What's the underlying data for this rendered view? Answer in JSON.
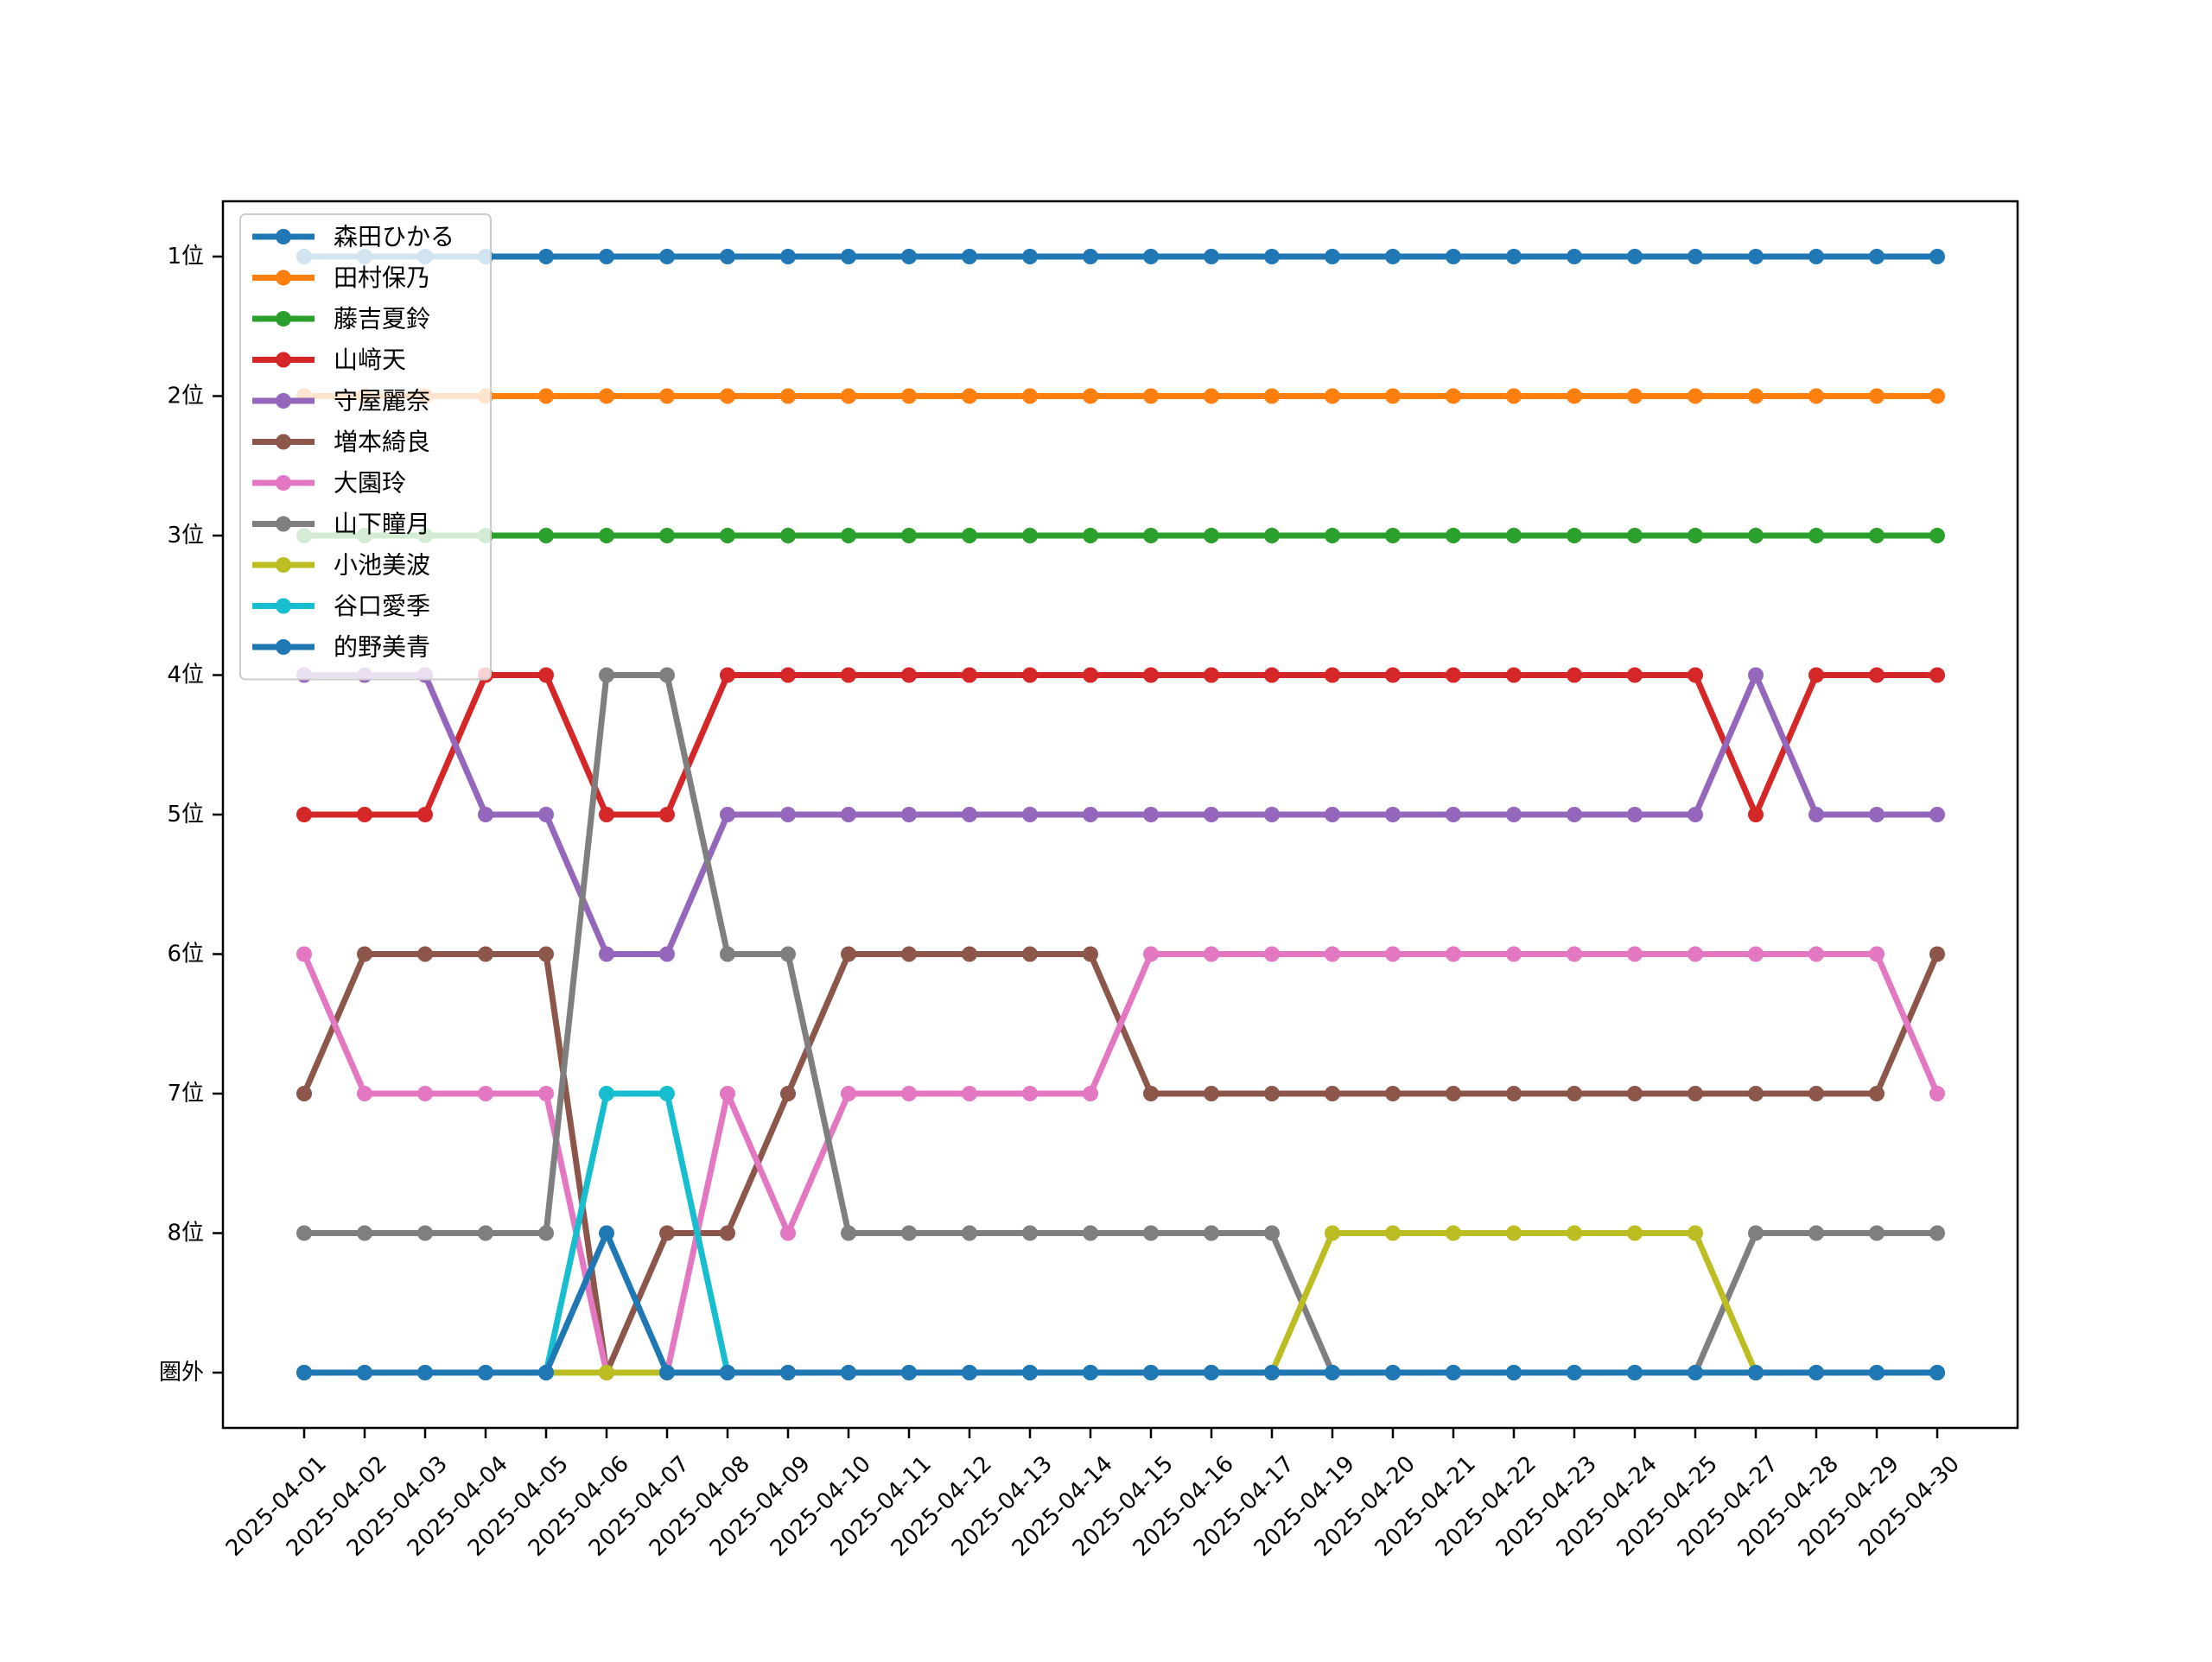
{
  "chart_data": {
    "type": "line",
    "title": "",
    "xlabel": "",
    "ylabel": "",
    "categories": [
      "2025-04-01",
      "2025-04-02",
      "2025-04-03",
      "2025-04-04",
      "2025-04-05",
      "2025-04-06",
      "2025-04-07",
      "2025-04-08",
      "2025-04-09",
      "2025-04-10",
      "2025-04-11",
      "2025-04-12",
      "2025-04-13",
      "2025-04-14",
      "2025-04-15",
      "2025-04-16",
      "2025-04-17",
      "2025-04-19",
      "2025-04-20",
      "2025-04-21",
      "2025-04-22",
      "2025-04-23",
      "2025-04-24",
      "2025-04-25",
      "2025-04-27",
      "2025-04-28",
      "2025-04-29",
      "2025-04-30"
    ],
    "y_tick_labels": [
      "1位",
      "2位",
      "3位",
      "4位",
      "5位",
      "6位",
      "7位",
      "8位",
      "圏外"
    ],
    "y_inverted": true,
    "ylim": [
      1,
      9
    ],
    "grid": false,
    "legend_position": "top-left",
    "series": [
      {
        "name": "森田ひかる",
        "color": "#1f77b4",
        "values": [
          1,
          1,
          1,
          1,
          1,
          1,
          1,
          1,
          1,
          1,
          1,
          1,
          1,
          1,
          1,
          1,
          1,
          1,
          1,
          1,
          1,
          1,
          1,
          1,
          1,
          1,
          1,
          1
        ]
      },
      {
        "name": "田村保乃",
        "color": "#ff7f0e",
        "values": [
          2,
          2,
          2,
          2,
          2,
          2,
          2,
          2,
          2,
          2,
          2,
          2,
          2,
          2,
          2,
          2,
          2,
          2,
          2,
          2,
          2,
          2,
          2,
          2,
          2,
          2,
          2,
          2
        ]
      },
      {
        "name": "藤吉夏鈴",
        "color": "#2ca02c",
        "values": [
          3,
          3,
          3,
          3,
          3,
          3,
          3,
          3,
          3,
          3,
          3,
          3,
          3,
          3,
          3,
          3,
          3,
          3,
          3,
          3,
          3,
          3,
          3,
          3,
          3,
          3,
          3,
          3
        ]
      },
      {
        "name": "山﨑天",
        "color": "#d62728",
        "values": [
          5,
          5,
          5,
          4,
          4,
          5,
          5,
          4,
          4,
          4,
          4,
          4,
          4,
          4,
          4,
          4,
          4,
          4,
          4,
          4,
          4,
          4,
          4,
          4,
          5,
          4,
          4,
          4
        ]
      },
      {
        "name": "守屋麗奈",
        "color": "#9467bd",
        "values": [
          4,
          4,
          4,
          5,
          5,
          6,
          6,
          5,
          5,
          5,
          5,
          5,
          5,
          5,
          5,
          5,
          5,
          5,
          5,
          5,
          5,
          5,
          5,
          5,
          4,
          5,
          5,
          5
        ]
      },
      {
        "name": "増本綺良",
        "color": "#8c564b",
        "values": [
          7,
          6,
          6,
          6,
          6,
          9,
          8,
          8,
          7,
          6,
          6,
          6,
          6,
          6,
          7,
          7,
          7,
          7,
          7,
          7,
          7,
          7,
          7,
          7,
          7,
          7,
          7,
          6
        ]
      },
      {
        "name": "大園玲",
        "color": "#e377c2",
        "values": [
          6,
          7,
          7,
          7,
          7,
          9,
          9,
          7,
          8,
          7,
          7,
          7,
          7,
          7,
          6,
          6,
          6,
          6,
          6,
          6,
          6,
          6,
          6,
          6,
          6,
          6,
          6,
          7
        ]
      },
      {
        "name": "山下瞳月",
        "color": "#7f7f7f",
        "values": [
          8,
          8,
          8,
          8,
          8,
          4,
          4,
          6,
          6,
          8,
          8,
          8,
          8,
          8,
          8,
          8,
          8,
          9,
          9,
          9,
          9,
          9,
          9,
          9,
          8,
          8,
          8,
          8
        ]
      },
      {
        "name": "小池美波",
        "color": "#bcbd22",
        "values": [
          9,
          9,
          9,
          9,
          9,
          9,
          9,
          9,
          9,
          9,
          9,
          9,
          9,
          9,
          9,
          9,
          9,
          8,
          8,
          8,
          8,
          8,
          8,
          8,
          9,
          9,
          9,
          9
        ]
      },
      {
        "name": "谷口愛季",
        "color": "#17becf",
        "values": [
          9,
          9,
          9,
          9,
          9,
          7,
          7,
          9,
          9,
          9,
          9,
          9,
          9,
          9,
          9,
          9,
          9,
          9,
          9,
          9,
          9,
          9,
          9,
          9,
          9,
          9,
          9,
          9
        ]
      },
      {
        "name": "的野美青",
        "color": "#1f77b4",
        "values": [
          9,
          9,
          9,
          9,
          9,
          8,
          9,
          9,
          9,
          9,
          9,
          9,
          9,
          9,
          9,
          9,
          9,
          9,
          9,
          9,
          9,
          9,
          9,
          9,
          9,
          9,
          9,
          9
        ]
      }
    ]
  }
}
